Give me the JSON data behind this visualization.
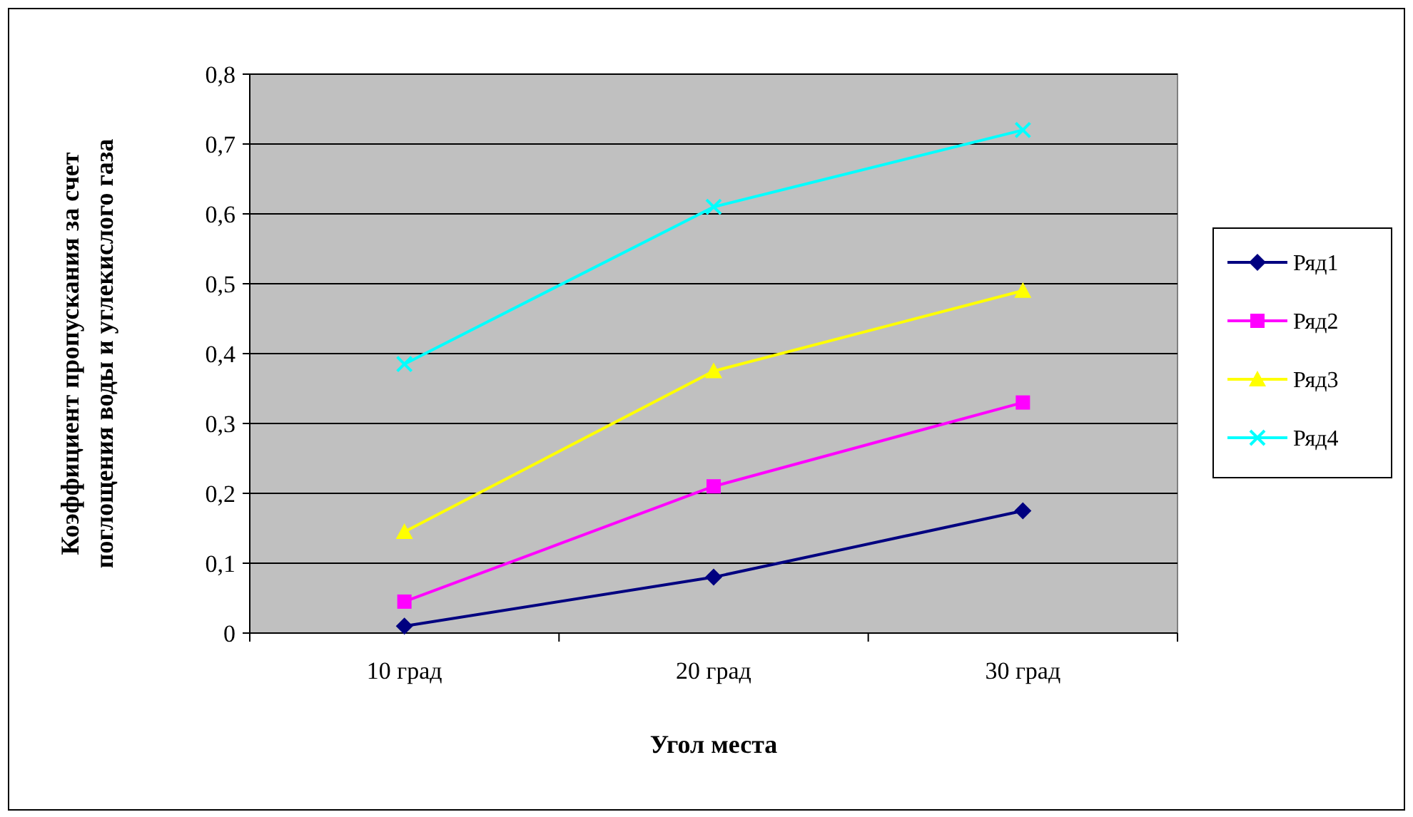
{
  "chart_data": {
    "type": "line",
    "xlabel": "Угол места",
    "ylabel": "Коэффициент пропускания за счет\nпоглощения воды и углекислого газа",
    "categories": [
      "10 град",
      "20 град",
      "30 град"
    ],
    "ylim": [
      0,
      0.8
    ],
    "yticks": [
      0,
      {
        "value": 0.1,
        "label": "0,1"
      },
      {
        "value": 0.2,
        "label": "0,2"
      },
      {
        "value": 0.3,
        "label": "0,3"
      },
      {
        "value": 0.4,
        "label": "0,4"
      },
      {
        "value": 0.5,
        "label": "0,5"
      },
      {
        "value": 0.6,
        "label": "0,6"
      },
      {
        "value": 0.7,
        "label": "0,7"
      },
      {
        "value": 0.8,
        "label": "0,8"
      }
    ],
    "grid": "y",
    "legend": "right",
    "series": [
      {
        "name": "Ряд1",
        "color": "#000080",
        "marker": "diamond",
        "values": [
          0.01,
          0.08,
          0.175
        ]
      },
      {
        "name": "Ряд2",
        "color": "#ff00ff",
        "marker": "square",
        "values": [
          0.045,
          0.21,
          0.33
        ]
      },
      {
        "name": "Ряд3",
        "color": "#ffff00",
        "marker": "triangle",
        "values": [
          0.145,
          0.375,
          0.49
        ]
      },
      {
        "name": "Ряд4",
        "color": "#00ffff",
        "marker": "cross",
        "values": [
          0.385,
          0.61,
          0.72
        ]
      }
    ]
  }
}
